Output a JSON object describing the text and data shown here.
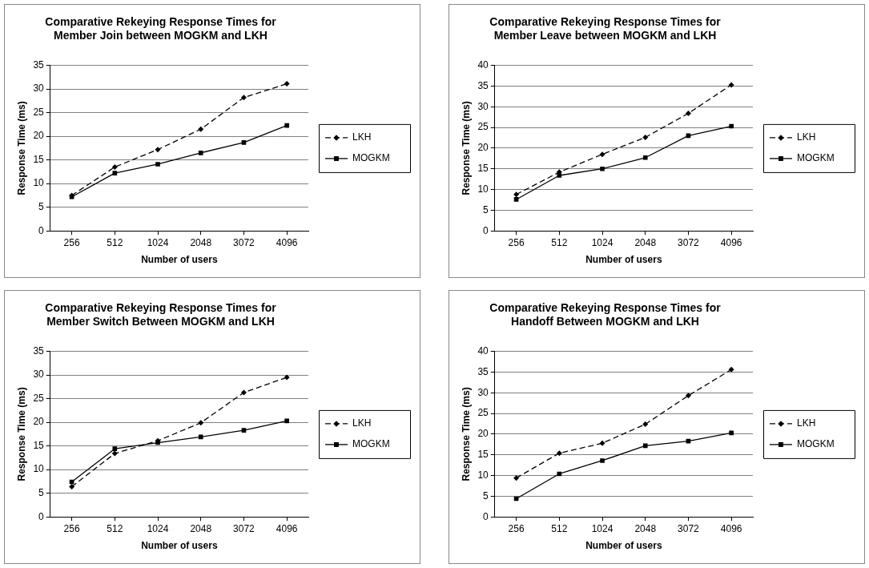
{
  "chart_data": [
    {
      "type": "line",
      "title": "Comparative Rekeying Response Times for\nMember Join between MOGKM and LKH",
      "xlabel": "Number of users",
      "ylabel": "Response Time (ms)",
      "categories": [
        "256",
        "512",
        "1024",
        "2048",
        "3072",
        "4096"
      ],
      "ylim": [
        0,
        35
      ],
      "yticks": [
        0,
        5,
        10,
        15,
        20,
        25,
        30,
        35
      ],
      "grid": "y",
      "legend": "right",
      "series": [
        {
          "name": "LKH",
          "color": "#000000",
          "marker": "diamond",
          "line_style": "dashed",
          "values": [
            7.5,
            13.5,
            17.2,
            21.5,
            28.2,
            31.1
          ]
        },
        {
          "name": "MOGKM",
          "color": "#000000",
          "marker": "square",
          "line_style": "solid",
          "values": [
            7.2,
            12.2,
            14.1,
            16.5,
            18.7,
            22.3
          ]
        }
      ]
    },
    {
      "type": "line",
      "title": "Comparative Rekeying Response Times for\nMember Leave between MOGKM and LKH",
      "xlabel": "Number of users",
      "ylabel": "Response Time (ms)",
      "categories": [
        "256",
        "512",
        "1024",
        "2048",
        "3072",
        "4096"
      ],
      "ylim": [
        0,
        40
      ],
      "yticks": [
        0,
        5,
        10,
        15,
        20,
        25,
        30,
        35,
        40
      ],
      "grid": "y",
      "legend": "right",
      "series": [
        {
          "name": "LKH",
          "color": "#000000",
          "marker": "diamond",
          "line_style": "dashed",
          "values": [
            8.8,
            14.2,
            18.5,
            22.6,
            28.4,
            35.3
          ]
        },
        {
          "name": "MOGKM",
          "color": "#000000",
          "marker": "square",
          "line_style": "solid",
          "values": [
            7.6,
            13.4,
            15.0,
            17.7,
            23.0,
            25.3
          ]
        }
      ]
    },
    {
      "type": "line",
      "title": "Comparative Rekeying Response Times for\nMember Switch Between MOGKM and LKH",
      "xlabel": "Number of users",
      "ylabel": "Response Time (ms)",
      "categories": [
        "256",
        "512",
        "1024",
        "2048",
        "3072",
        "4096"
      ],
      "ylim": [
        0,
        35
      ],
      "yticks": [
        0,
        5,
        10,
        15,
        20,
        25,
        30,
        35
      ],
      "grid": "y",
      "legend": "right",
      "series": [
        {
          "name": "LKH",
          "color": "#000000",
          "marker": "diamond",
          "line_style": "dashed",
          "values": [
            6.4,
            13.4,
            16.1,
            19.9,
            26.3,
            29.5
          ]
        },
        {
          "name": "MOGKM",
          "color": "#000000",
          "marker": "square",
          "line_style": "solid",
          "values": [
            7.4,
            14.4,
            15.7,
            16.9,
            18.3,
            20.3
          ]
        }
      ]
    },
    {
      "type": "line",
      "title": "Comparative Rekeying Response Times for\nHandoff Between MOGKM and LKH",
      "xlabel": "Number of users",
      "ylabel": "Response Time (ms)",
      "categories": [
        "256",
        "512",
        "1024",
        "2048",
        "3072",
        "4096"
      ],
      "ylim": [
        0,
        40
      ],
      "yticks": [
        0,
        5,
        10,
        15,
        20,
        25,
        30,
        35,
        40
      ],
      "grid": "y",
      "legend": "right",
      "series": [
        {
          "name": "LKH",
          "color": "#000000",
          "marker": "diamond",
          "line_style": "dashed",
          "values": [
            9.4,
            15.4,
            17.8,
            22.4,
            29.3,
            35.6
          ]
        },
        {
          "name": "MOGKM",
          "color": "#000000",
          "marker": "square",
          "line_style": "solid",
          "values": [
            4.4,
            10.4,
            13.6,
            17.2,
            18.3,
            20.3
          ]
        }
      ]
    }
  ]
}
